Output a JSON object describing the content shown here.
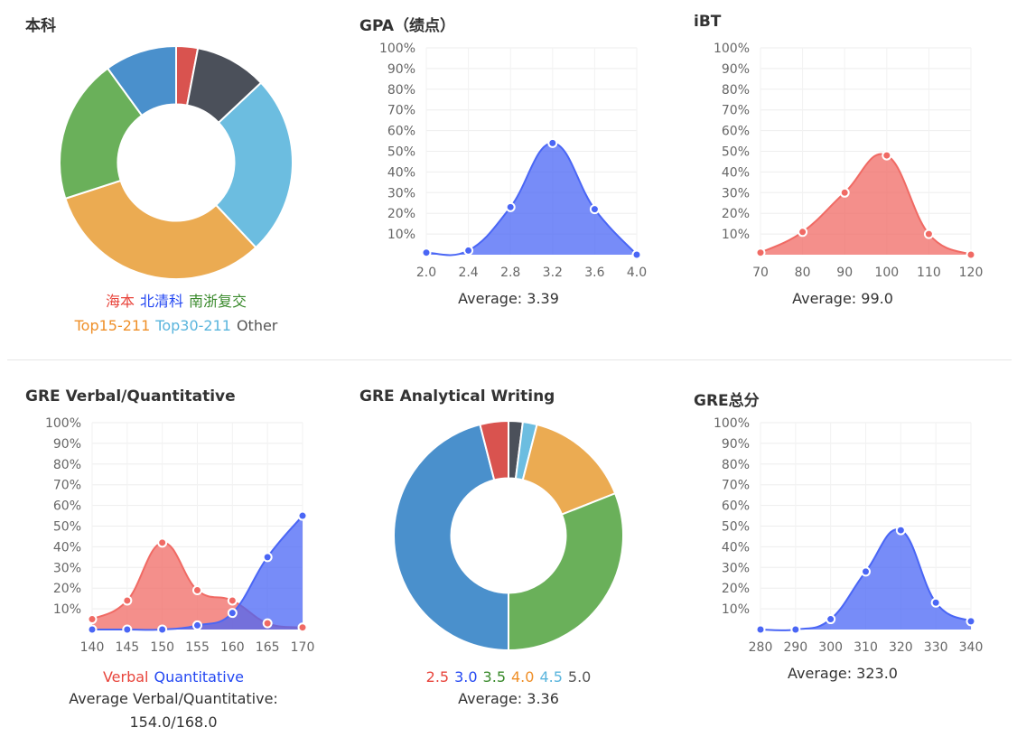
{
  "titles": {
    "p1": "本科",
    "p2": "GPA（绩点）",
    "p3": "iBT",
    "p4": "GRE Verbal/Quantitative",
    "p5": "GRE Analytical Writing",
    "p6": "GRE总分"
  },
  "captions": {
    "gpa": "Average: 3.39",
    "ibt": "Average: 99.0",
    "vq_line1": "Average Verbal/Quantitative:",
    "vq_line2": "154.0/168.0",
    "aw": "Average: 3.36",
    "total": "Average: 323.0"
  },
  "chart_data": [
    {
      "id": "undergrad",
      "type": "pie",
      "title": "本科",
      "donut": true,
      "legend_rows": [
        [
          "海本",
          "北清科",
          "南浙复交"
        ],
        [
          "Top15-211",
          "Top30-211",
          "Other"
        ]
      ],
      "slices": [
        {
          "label": "海本",
          "value": 3,
          "color": "#d9534f"
        },
        {
          "label": "Other",
          "value": 10,
          "color": "#4b505a"
        },
        {
          "label": "Top30-211",
          "value": 25,
          "color": "#6cbde0"
        },
        {
          "label": "Top15-211",
          "value": 32,
          "color": "#ebab52"
        },
        {
          "label": "南浙复交",
          "value": 20,
          "color": "#6ab05a"
        },
        {
          "label": "北清科",
          "value": 10,
          "color": "#4a90cc"
        }
      ],
      "legend_colors": {
        "海本": "#e8453c",
        "北清科": "#2448f2",
        "南浙复交": "#3a8a2c",
        "Top15-211": "#ef8f28",
        "Top30-211": "#5ab5dd",
        "Other": "#555555"
      }
    },
    {
      "id": "gpa",
      "type": "area",
      "title": "GPA（绩点）",
      "x_ticks": [
        "2.0",
        "2.4",
        "2.8",
        "3.2",
        "3.6",
        "4.0"
      ],
      "xlim": [
        2.0,
        4.0
      ],
      "ylim": [
        0,
        100
      ],
      "y_ticks": [
        "10%",
        "20%",
        "30%",
        "40%",
        "50%",
        "60%",
        "70%",
        "80%",
        "90%",
        "100%"
      ],
      "series": [
        {
          "color": "#4a66f5",
          "points": [
            [
              2.0,
              1
            ],
            [
              2.4,
              2
            ],
            [
              2.8,
              23
            ],
            [
              3.2,
              54
            ],
            [
              3.6,
              22
            ],
            [
              4.0,
              0
            ]
          ]
        }
      ]
    },
    {
      "id": "ibt",
      "type": "area",
      "title": "iBT",
      "x_ticks": [
        "70",
        "80",
        "90",
        "100",
        "110",
        "120"
      ],
      "xlim": [
        70,
        120
      ],
      "ylim": [
        0,
        100
      ],
      "y_ticks": [
        "10%",
        "20%",
        "30%",
        "40%",
        "50%",
        "60%",
        "70%",
        "80%",
        "90%",
        "100%"
      ],
      "series": [
        {
          "color": "#f06a64",
          "points": [
            [
              70,
              1
            ],
            [
              80,
              11
            ],
            [
              90,
              30
            ],
            [
              100,
              48
            ],
            [
              110,
              10
            ],
            [
              120,
              0
            ]
          ]
        }
      ]
    },
    {
      "id": "vq",
      "type": "area",
      "title": "GRE Verbal/Quantitative",
      "x_ticks": [
        "140",
        "145",
        "150",
        "155",
        "160",
        "165",
        "170"
      ],
      "xlim": [
        140,
        170
      ],
      "ylim": [
        0,
        100
      ],
      "y_ticks": [
        "10%",
        "20%",
        "30%",
        "40%",
        "50%",
        "60%",
        "70%",
        "80%",
        "90%",
        "100%"
      ],
      "legend": [
        "Verbal",
        "Quantitative"
      ],
      "series": [
        {
          "name": "Verbal",
          "color": "#f06a64",
          "points": [
            [
              140,
              5
            ],
            [
              145,
              14
            ],
            [
              150,
              42
            ],
            [
              155,
              19
            ],
            [
              160,
              14
            ],
            [
              165,
              3
            ],
            [
              170,
              1
            ]
          ]
        },
        {
          "name": "Quantitative",
          "color": "#4a66f5",
          "points": [
            [
              140,
              0
            ],
            [
              145,
              0
            ],
            [
              150,
              0
            ],
            [
              155,
              2
            ],
            [
              160,
              8
            ],
            [
              165,
              35
            ],
            [
              170,
              55
            ]
          ]
        }
      ]
    },
    {
      "id": "aw",
      "type": "pie",
      "title": "GRE Analytical Writing",
      "donut": true,
      "legend_rows": [
        [
          "2.5",
          "3.0",
          "3.5",
          "4.0",
          "4.5",
          "5.0"
        ]
      ],
      "slices": [
        {
          "label": "5.0",
          "value": 2,
          "color": "#4b505a"
        },
        {
          "label": "4.5",
          "value": 2,
          "color": "#6cbde0"
        },
        {
          "label": "4.0",
          "value": 15,
          "color": "#ebab52"
        },
        {
          "label": "3.5",
          "value": 31,
          "color": "#6ab05a"
        },
        {
          "label": "3.0",
          "value": 46,
          "color": "#4a90cc"
        },
        {
          "label": "2.5",
          "value": 4,
          "color": "#d9534f"
        }
      ],
      "legend_colors": {
        "2.5": "#e8453c",
        "3.0": "#2448f2",
        "3.5": "#3a8a2c",
        "4.0": "#ef8f28",
        "4.5": "#5ab5dd",
        "5.0": "#555555"
      }
    },
    {
      "id": "total",
      "type": "area",
      "title": "GRE总分",
      "x_ticks": [
        "280",
        "290",
        "300",
        "310",
        "320",
        "330",
        "340"
      ],
      "xlim": [
        280,
        340
      ],
      "ylim": [
        0,
        100
      ],
      "y_ticks": [
        "10%",
        "20%",
        "30%",
        "40%",
        "50%",
        "60%",
        "70%",
        "80%",
        "90%",
        "100%"
      ],
      "series": [
        {
          "color": "#4a66f5",
          "points": [
            [
              280,
              0
            ],
            [
              290,
              0
            ],
            [
              300,
              5
            ],
            [
              310,
              28
            ],
            [
              320,
              48
            ],
            [
              330,
              13
            ],
            [
              340,
              4
            ]
          ]
        }
      ]
    }
  ]
}
